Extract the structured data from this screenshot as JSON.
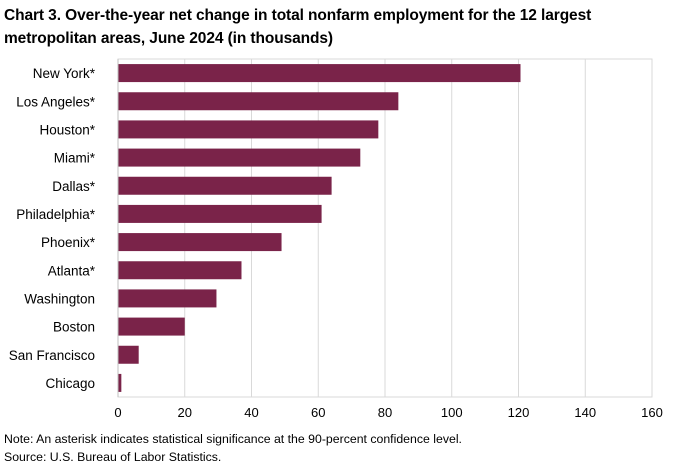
{
  "chart_data": {
    "type": "bar",
    "orientation": "horizontal",
    "title": "Chart 3. Over-the-year net change in total nonfarm employment for the 12 largest metropolitan areas, June 2024 (in thousands)",
    "xlabel": "",
    "ylabel": "",
    "categories": [
      "New York*",
      "Los Angeles*",
      "Houston*",
      "Miami*",
      "Dallas*",
      "Philadelphia*",
      "Phoenix*",
      "Atlanta*",
      "Washington",
      "Boston",
      "San Francisco",
      "Chicago"
    ],
    "values": [
      120.6,
      84.0,
      78.0,
      72.6,
      64.0,
      61.0,
      49.0,
      37.0,
      29.5,
      20.0,
      6.2,
      1.0
    ],
    "xlim": [
      0,
      160
    ],
    "xticks": [
      "0",
      "20",
      "40",
      "60",
      "80",
      "100",
      "120",
      "140",
      "160"
    ],
    "grid": "vertical",
    "bar_color": "#7a2349"
  },
  "notes": {
    "note": "Note: An asterisk indicates statistical significance at the 90-percent confidence level.",
    "source": "Source: U.S. Bureau of Labor Statistics."
  }
}
